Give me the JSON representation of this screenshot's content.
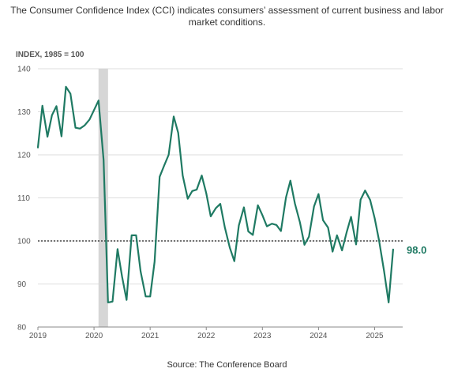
{
  "chart_data": {
    "type": "line",
    "title": "The Consumer Confidence Index (CCI) indicates consumers’ assessment of current business and labor market conditions.",
    "ylabel": "INDEX, 1985 = 100",
    "source": "Source: The Conference Board",
    "end_label": "98.0",
    "ylim": [
      80,
      140
    ],
    "yticks": [
      80,
      90,
      100,
      110,
      120,
      130,
      140
    ],
    "xlim": [
      2019.0,
      2025.5
    ],
    "xticks": [
      {
        "value": 2019,
        "label": "2019"
      },
      {
        "value": 2020,
        "label": "2020"
      },
      {
        "value": 2021,
        "label": "2021"
      },
      {
        "value": 2022,
        "label": "2022"
      },
      {
        "value": 2023,
        "label": "2023"
      },
      {
        "value": 2024,
        "label": "2024"
      },
      {
        "value": 2025,
        "label": "2025"
      }
    ],
    "reference_line": 100,
    "recession_band": [
      2020.08,
      2020.25
    ],
    "grid": true,
    "colors": {
      "line": "#1f7a63",
      "grid": "#dddddd",
      "band": "#d6d6d6",
      "reference": "#222222"
    },
    "series": [
      {
        "x": [
          2019.0,
          2019.08,
          2019.17,
          2019.25,
          2019.33,
          2019.42,
          2019.5,
          2019.58,
          2019.67,
          2019.75,
          2019.83,
          2019.92,
          2020.0,
          2020.08,
          2020.17,
          2020.25,
          2020.33,
          2020.42,
          2020.5,
          2020.58,
          2020.67,
          2020.75,
          2020.83,
          2020.92,
          2021.0,
          2021.08,
          2021.17,
          2021.25,
          2021.33,
          2021.42,
          2021.5,
          2021.58,
          2021.67,
          2021.75,
          2021.83,
          2021.92,
          2022.0,
          2022.08,
          2022.17,
          2022.25,
          2022.33,
          2022.42,
          2022.5,
          2022.58,
          2022.67,
          2022.75,
          2022.83,
          2022.92,
          2023.0,
          2023.08,
          2023.17,
          2023.25,
          2023.33,
          2023.42,
          2023.5,
          2023.58,
          2023.67,
          2023.75,
          2023.83,
          2023.92,
          2024.0,
          2024.08,
          2024.17,
          2024.25,
          2024.33,
          2024.42,
          2024.5,
          2024.58,
          2024.67,
          2024.75,
          2024.83,
          2024.92,
          2025.0,
          2025.08,
          2025.17,
          2025.25,
          2025.33
        ],
        "values": [
          121.7,
          131.4,
          124.2,
          129.2,
          131.3,
          124.3,
          135.8,
          134.2,
          126.3,
          126.1,
          126.8,
          128.2,
          130.4,
          132.6,
          118.8,
          85.7,
          85.9,
          98.1,
          91.7,
          86.3,
          101.3,
          101.3,
          92.9,
          87.1,
          87.1,
          95.2,
          114.9,
          117.5,
          120.0,
          128.9,
          125.1,
          115.2,
          109.8,
          111.6,
          111.9,
          115.2,
          111.1,
          105.7,
          107.6,
          108.6,
          103.2,
          98.4,
          95.3,
          103.6,
          107.8,
          102.2,
          101.4,
          108.3,
          106.0,
          103.4,
          104.0,
          103.7,
          102.3,
          110.1,
          114.0,
          108.7,
          104.3,
          99.1,
          101.0,
          108.0,
          110.9,
          104.8,
          103.1,
          97.5,
          101.3,
          97.8,
          101.9,
          105.6,
          99.2,
          109.6,
          111.7,
          109.5,
          105.3,
          100.1,
          92.9,
          85.7,
          98.0
        ]
      }
    ]
  }
}
